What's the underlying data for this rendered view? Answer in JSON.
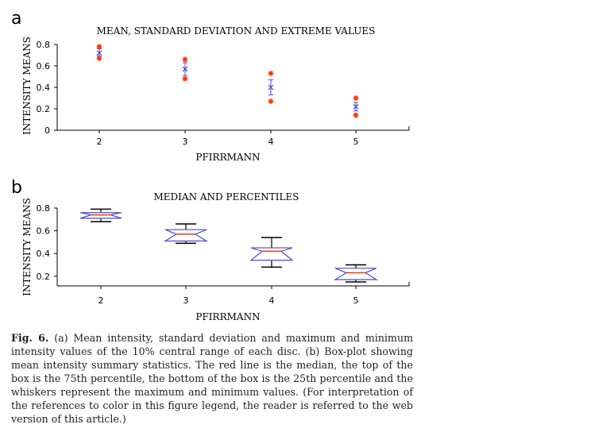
{
  "chart_data": [
    {
      "panel": "a",
      "type": "scatter",
      "title": "MEAN, STANDARD DEVIATION AND EXTREME VALUES",
      "xlabel": "PFIRRMANN",
      "ylabel": "INTENSITY MEANS",
      "categories": [
        "2",
        "3",
        "4",
        "5"
      ],
      "yticks": [
        "0",
        "0.2",
        "0.4",
        "0.6",
        "0.8"
      ],
      "ylim": [
        0,
        0.8
      ],
      "series": [
        {
          "name": "maximum",
          "color": "#ff3300",
          "values": [
            0.78,
            0.66,
            0.53,
            0.3
          ]
        },
        {
          "name": "minimum",
          "color": "#ff3300",
          "values": [
            0.67,
            0.48,
            0.27,
            0.14
          ]
        },
        {
          "name": "mean",
          "color": "#4b4bc8",
          "values": [
            0.72,
            0.57,
            0.4,
            0.22
          ]
        },
        {
          "name": "mean + sd",
          "color": "#4b4bc8",
          "values": [
            0.76,
            0.63,
            0.47,
            0.26
          ]
        },
        {
          "name": "mean - sd",
          "color": "#4b4bc8",
          "values": [
            0.69,
            0.51,
            0.33,
            0.18
          ]
        }
      ]
    },
    {
      "panel": "b",
      "type": "box",
      "title": "MEDIAN AND PERCENTILES",
      "xlabel": "PFIRRMANN",
      "ylabel": "INTENSITY MEANS",
      "categories": [
        "2",
        "3",
        "4",
        "5"
      ],
      "yticks": [
        "0.2",
        "0.4",
        "0.6",
        "0.8"
      ],
      "ylim": [
        0.1,
        0.82
      ],
      "median_color": "#ff3300",
      "box_color": "#4b4bc8",
      "whisker_color": "#000000",
      "boxes": [
        {
          "max": 0.79,
          "q3": 0.76,
          "median": 0.74,
          "q1": 0.71,
          "min": 0.68
        },
        {
          "max": 0.66,
          "q3": 0.61,
          "median": 0.57,
          "q1": 0.51,
          "min": 0.49
        },
        {
          "max": 0.54,
          "q3": 0.45,
          "median": 0.42,
          "q1": 0.34,
          "min": 0.28
        },
        {
          "max": 0.3,
          "q3": 0.27,
          "median": 0.23,
          "q1": 0.17,
          "min": 0.15
        }
      ]
    }
  ],
  "labels": {
    "panel_a": "a",
    "panel_b": "b"
  },
  "caption": {
    "label": "Fig. 6.",
    "text": " (a) Mean intensity, standard deviation and maximum and minimum intensity values of the 10% central range of each disc. (b) Box-plot showing mean intensity summary statistics. The red line is the median, the top of the box is the 75th percentile, the bottom of the box is the 25th percentile and the whiskers represent the maximum and minimum values. (For interpretation of the references to color in this figure legend, the reader is referred to the web version of this article.)"
  }
}
